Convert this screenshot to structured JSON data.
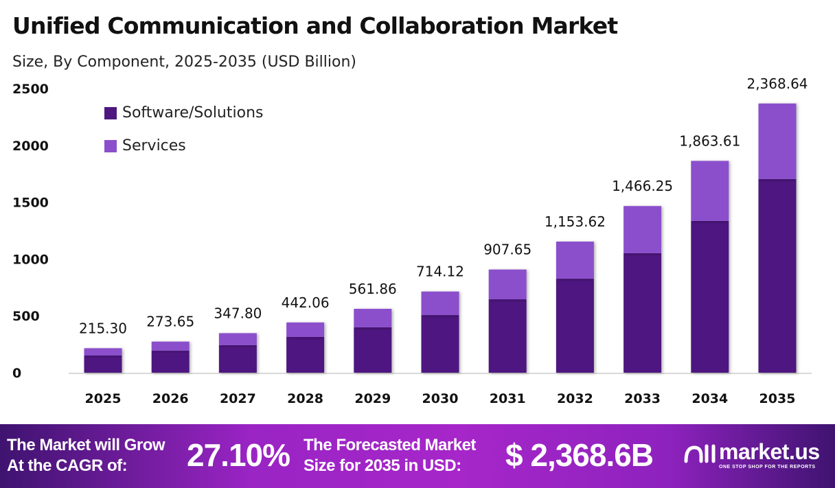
{
  "chart_data": {
    "type": "bar",
    "stacked": true,
    "title": "Unified Communication and Collaboration Market",
    "subtitle": "Size, By Component, 2025-2035 (USD Billion)",
    "categories": [
      "2025",
      "2026",
      "2027",
      "2028",
      "2029",
      "2030",
      "2031",
      "2032",
      "2033",
      "2034",
      "2035"
    ],
    "series": [
      {
        "name": "Software/Solutions",
        "color": "#4e1780",
        "values": [
          151,
          193,
          242,
          314,
          399,
          507,
          646,
          827,
          1051,
          1335,
          1703
        ]
      },
      {
        "name": "Services",
        "color": "#8b4fcc",
        "values": [
          64.3,
          80.65,
          105.8,
          128.06,
          162.86,
          207.12,
          261.65,
          326.62,
          415.25,
          528.61,
          665.64
        ]
      }
    ],
    "totals": [
      215.3,
      273.65,
      347.8,
      442.06,
      561.86,
      714.12,
      907.65,
      1153.62,
      1466.25,
      1863.61,
      2368.64
    ],
    "total_labels": [
      "215.30",
      "273.65",
      "347.80",
      "442.06",
      "561.86",
      "714.12",
      "907.65",
      "1,153.62",
      "1,466.25",
      "1,863.61",
      "2,368.64"
    ],
    "yticks": [
      "0",
      "500",
      "1000",
      "1500",
      "2000",
      "2500"
    ],
    "ylim": [
      0,
      2500
    ],
    "legend_position": "top-left",
    "grid": false
  },
  "footer": {
    "cagr_text_1": "The Market will Grow",
    "cagr_text_2": "At the CAGR of:",
    "cagr_value": "27.10%",
    "forecast_text_1": "The Forecasted Market",
    "forecast_text_2": "Size for 2035 in USD:",
    "forecast_value": "$ 2,368.6B",
    "brand": "market.us",
    "tagline": "ONE STOP SHOP FOR THE REPORTS"
  }
}
